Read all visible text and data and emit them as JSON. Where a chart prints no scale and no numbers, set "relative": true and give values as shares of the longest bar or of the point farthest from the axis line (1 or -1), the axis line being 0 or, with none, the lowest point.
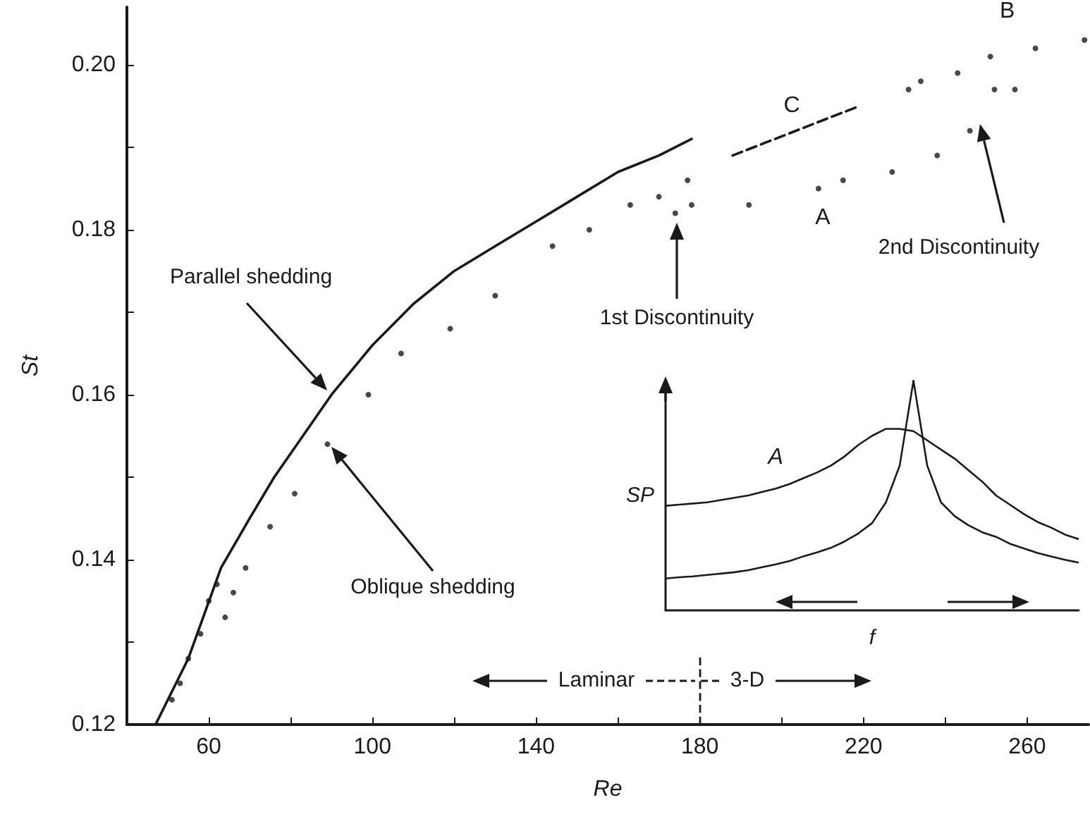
{
  "chart_data": [
    {
      "type": "scatter",
      "xlabel": "Re",
      "ylabel": "St",
      "xlim": [
        40,
        275
      ],
      "ylim": [
        0.12,
        0.207
      ],
      "xticks": [
        60,
        {
          "value": 80,
          "label": null
        },
        100,
        {
          "value": 120,
          "label": null
        },
        140,
        {
          "value": 160,
          "label": null
        },
        180,
        {
          "value": 200,
          "label": null
        },
        220,
        {
          "value": 240,
          "label": null
        },
        260
      ],
      "yticks": [
        0.12,
        {
          "value": 0.13,
          "label": null
        },
        0.14,
        {
          "value": 0.15,
          "label": null
        },
        0.16,
        {
          "value": 0.17,
          "label": null
        },
        0.18,
        {
          "value": 0.19,
          "label": null
        },
        {
          "value": 0.2,
          "label": "0.20"
        }
      ],
      "grid": false,
      "legend": false,
      "series": [
        {
          "type": "line",
          "marker": "none",
          "line_style": "solid",
          "color": "#1a1a1a",
          "x": [
            47,
            55,
            63,
            70,
            76,
            90,
            100,
            110,
            120,
            130,
            140,
            150,
            160,
            170,
            178
          ],
          "values": [
            0.12,
            0.128,
            0.139,
            0.145,
            0.15,
            0.16,
            0.166,
            0.171,
            0.175,
            0.178,
            0.181,
            0.184,
            0.187,
            0.189,
            0.191
          ]
        },
        {
          "marker": "circle",
          "color": "#1a1a1a",
          "x": [
            51,
            53,
            55,
            58,
            60,
            62,
            64,
            66,
            69,
            75,
            81,
            89,
            99,
            107,
            119,
            130,
            144,
            153,
            163,
            170,
            177
          ],
          "values": [
            0.123,
            0.125,
            0.128,
            0.131,
            0.135,
            0.137,
            0.133,
            0.136,
            0.139,
            0.144,
            0.148,
            0.154,
            0.16,
            0.165,
            0.168,
            0.172,
            0.178,
            0.18,
            0.183,
            0.184,
            0.186
          ]
        },
        {
          "name": "A",
          "marker": "circle",
          "color": "#1a1a1a",
          "x": [
            174,
            178,
            192,
            209,
            215,
            227,
            238,
            246,
            252,
            257
          ],
          "values": [
            0.182,
            0.183,
            0.183,
            0.185,
            0.186,
            0.187,
            0.189,
            0.192,
            0.197,
            0.197
          ]
        },
        {
          "name": "B",
          "marker": "circle",
          "color": "#1a1a1a",
          "x": [
            231,
            234,
            243,
            251,
            262,
            274
          ],
          "values": [
            0.197,
            0.198,
            0.199,
            0.201,
            0.202,
            0.203
          ]
        },
        {
          "name": "C",
          "type": "line",
          "marker": "none",
          "line_style": "dashed",
          "color": "#1a1a1a",
          "x": [
            188,
            219
          ],
          "values": [
            0.189,
            0.195
          ]
        }
      ],
      "ref_lines": [
        {
          "axis": "x",
          "value": 180,
          "line_style": "dashed"
        }
      ],
      "annotations": [
        "Parallel shedding",
        "Oblique shedding",
        "1st Discontinuity",
        "2nd Discontinuity",
        "Laminar",
        "3-D"
      ]
    },
    {
      "type": "line",
      "relative": true,
      "xlabel": "f",
      "ylabel": "SP",
      "marker": "none",
      "categories": [
        null,
        null,
        null,
        null,
        null,
        null,
        null,
        null,
        null,
        null,
        null,
        null,
        null,
        null,
        null,
        null,
        null,
        null,
        null,
        null,
        null,
        null,
        null,
        null,
        null,
        null,
        null,
        null,
        null,
        null,
        null
      ],
      "series": [
        {
          "name": "A",
          "color": "#1a1a1a",
          "values": [
            0.455,
            0.46,
            0.465,
            0.47,
            0.48,
            0.49,
            0.5,
            0.515,
            0.53,
            0.55,
            0.575,
            0.6,
            0.63,
            0.67,
            0.72,
            0.76,
            0.79,
            0.79,
            0.78,
            0.74,
            0.7,
            0.66,
            0.61,
            0.56,
            0.5,
            0.46,
            0.42,
            0.385,
            0.36,
            0.33,
            0.31
          ]
        },
        {
          "color": "#1a1a1a",
          "values": [
            0.139,
            0.144,
            0.148,
            0.154,
            0.16,
            0.166,
            0.175,
            0.188,
            0.2,
            0.215,
            0.235,
            0.252,
            0.272,
            0.3,
            0.335,
            0.38,
            0.47,
            0.63,
            1,
            0.63,
            0.47,
            0.41,
            0.37,
            0.34,
            0.32,
            0.29,
            0.27,
            0.25,
            0.235,
            0.22,
            0.208
          ]
        }
      ]
    }
  ]
}
